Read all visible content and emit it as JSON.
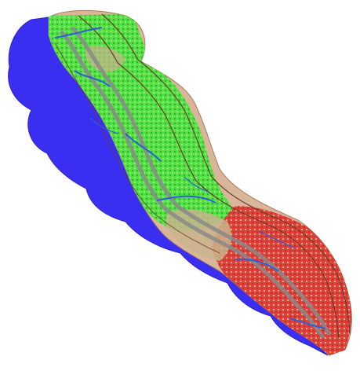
{
  "map": {
    "view": "coastal-corridor-land-cover-map",
    "colors": {
      "sea": "#3a2ff0",
      "sea_edge": "#2b22c8",
      "buffer_fill": "#d9b69a",
      "vegetation": "#52e043",
      "vegetation_dark": "#2fb033",
      "degraded_land": "#e23a35",
      "bare_soil": "#c9b48c",
      "river": "#2e5fd6",
      "corridor_line": "#8a8a8a",
      "zone_boundary": "#6b3c2a"
    },
    "layers": [
      "sea-buffer",
      "land-buffer",
      "vegetation-cover",
      "degraded-land-cover",
      "river-network",
      "corridor-outline",
      "zone-boundaries"
    ]
  }
}
